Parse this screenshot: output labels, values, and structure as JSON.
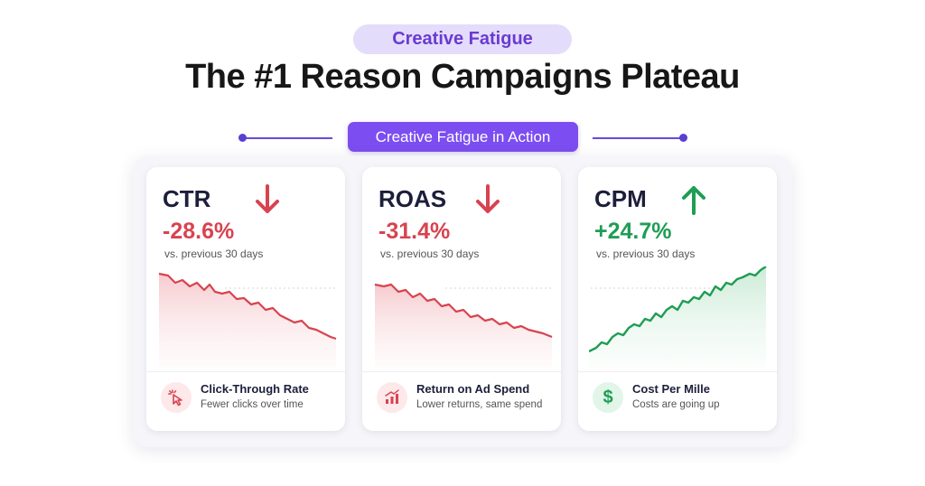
{
  "badge": "Creative Fatigue",
  "title": "The #1 Reason Campaigns Plateau",
  "section_label": "Creative Fatigue in Action",
  "colors": {
    "accent": "#7c4df0",
    "negative": "#d8434f",
    "positive": "#1f9d55"
  },
  "cards": [
    {
      "metric": "CTR",
      "change": "-28.6%",
      "direction": "down",
      "icon": "arrow-down-icon",
      "comparison": "vs. previous 30 days",
      "footer_icon": "cursor-click-icon",
      "footer_title": "Click-Through Rate",
      "footer_subtitle": "Fewer clicks over time"
    },
    {
      "metric": "ROAS",
      "change": "-31.4%",
      "direction": "down",
      "icon": "arrow-down-icon",
      "comparison": "vs. previous 30 days",
      "footer_icon": "bar-chart-icon",
      "footer_title": "Return on Ad Spend",
      "footer_subtitle": "Lower returns, same spend"
    },
    {
      "metric": "CPM",
      "change": "+24.7%",
      "direction": "up",
      "icon": "arrow-up-icon",
      "comparison": "vs. previous 30 days",
      "footer_icon": "dollar-icon",
      "footer_title": "Cost Per Mille",
      "footer_subtitle": "Costs are going up"
    }
  ]
}
